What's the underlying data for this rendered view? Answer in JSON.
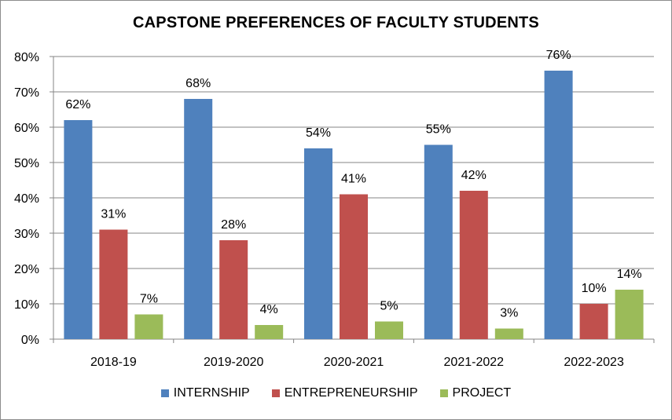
{
  "chart_data": {
    "type": "bar",
    "title": "CAPSTONE PREFERENCES OF FACULTY STUDENTS",
    "categories": [
      "2018-19",
      "2019-2020",
      "2020-2021",
      "2021-2022",
      "2022-2023"
    ],
    "series": [
      {
        "name": "INTERNSHIP",
        "color": "#4f81bd",
        "values": [
          62,
          68,
          54,
          55,
          76
        ],
        "labels": [
          "62%",
          "68%",
          "54%",
          "55%",
          "76%"
        ]
      },
      {
        "name": "ENTREPRENEURSHIP",
        "color": "#c0504d",
        "values": [
          31,
          28,
          41,
          42,
          10
        ],
        "labels": [
          "31%",
          "28%",
          "41%",
          "42%",
          "10%"
        ]
      },
      {
        "name": "PROJECT",
        "color": "#9bbb59",
        "values": [
          7,
          4,
          5,
          3,
          14
        ],
        "labels": [
          "7%",
          "4%",
          "5%",
          "3%",
          "14%"
        ]
      }
    ],
    "ylim": [
      0,
      80
    ],
    "yticks": [
      "0%",
      "10%",
      "20%",
      "30%",
      "40%",
      "50%",
      "60%",
      "70%",
      "80%"
    ],
    "grid": true,
    "legend_position": "bottom"
  }
}
